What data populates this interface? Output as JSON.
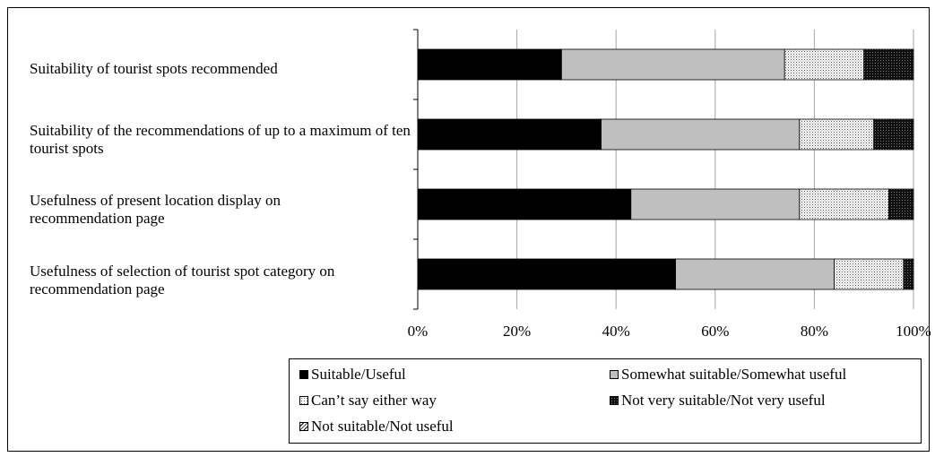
{
  "chart_data": {
    "type": "bar",
    "orientation": "horizontal",
    "stacked": true,
    "percent": true,
    "categories": [
      "Suitability of tourist spots recommended",
      "Suitability of the recommendations of up to a maximum of ten tourist spots",
      "Usefulness of present location display on recommendation page",
      "Usefulness of selection of tourist spot category on recommendation page"
    ],
    "series": [
      {
        "name": "Suitable/Useful",
        "values": [
          29,
          37,
          43,
          52
        ],
        "color": "#000000",
        "pattern": "solid-black"
      },
      {
        "name": "Somewhat suitable/Somewhat useful",
        "values": [
          45,
          40,
          34,
          32
        ],
        "color": "#bfbfbf",
        "pattern": "solid-gray"
      },
      {
        "name": "Can’t say either way",
        "values": [
          16,
          15,
          18,
          14
        ],
        "color": "#ffffff",
        "pattern": "fine-dots"
      },
      {
        "name": "Not very suitable/Not very useful",
        "values": [
          10,
          8,
          5,
          2
        ],
        "color": "#1a1a1a",
        "pattern": "dense-dark"
      },
      {
        "name": "Not suitable/Not useful",
        "values": [
          0,
          0,
          0,
          0
        ],
        "color": "#ffffff",
        "pattern": "diagonal-hatch"
      }
    ],
    "xlim": [
      0,
      100
    ],
    "xticks": [
      "0%",
      "20%",
      "40%",
      "60%",
      "80%",
      "100%"
    ],
    "grid": "vertical",
    "legend_position": "bottom"
  }
}
